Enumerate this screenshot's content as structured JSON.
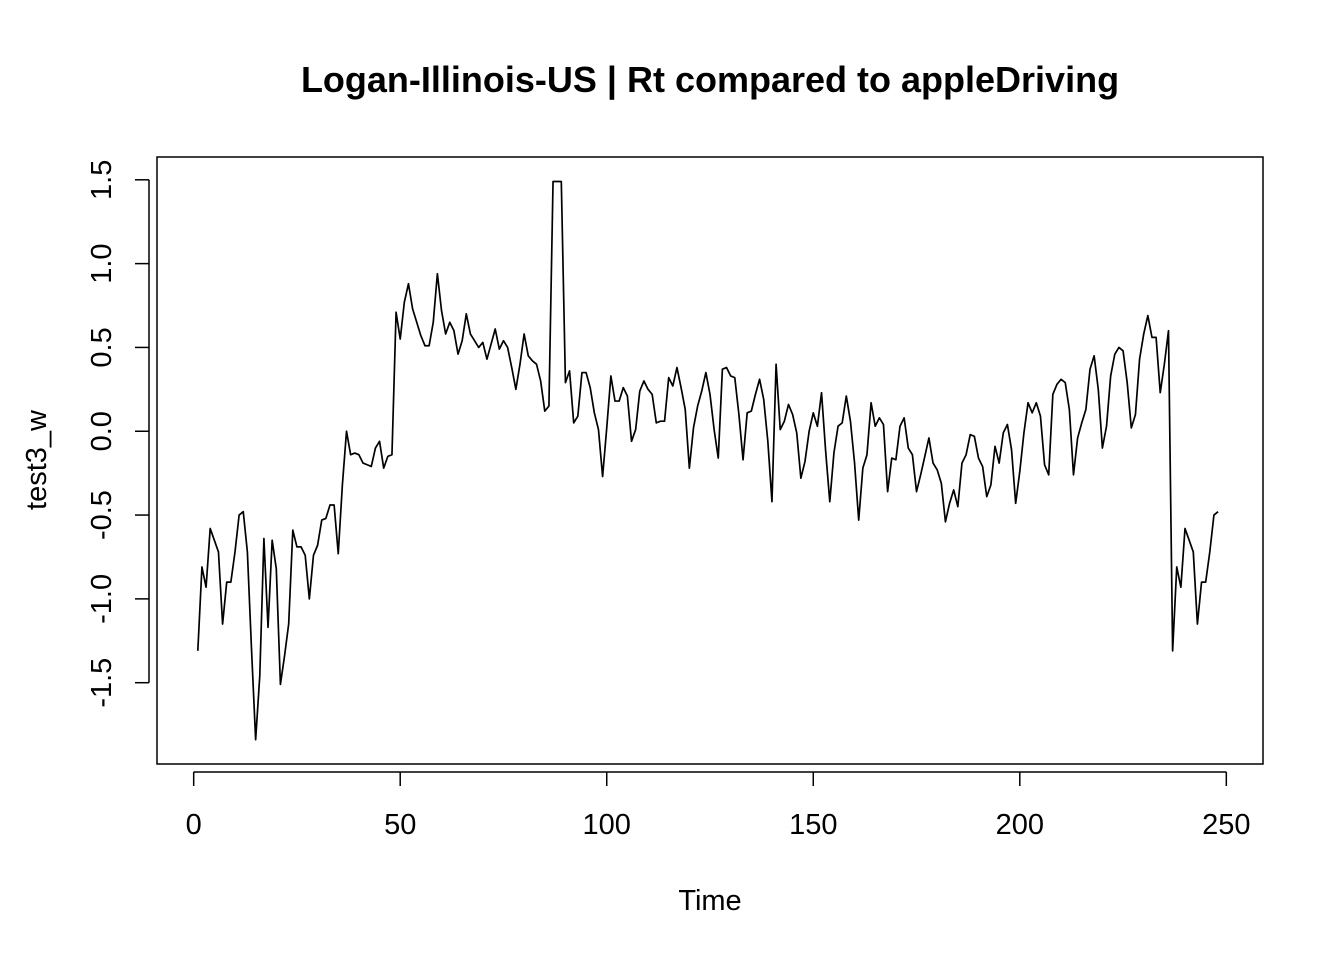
{
  "chart_data": {
    "type": "line",
    "title": "Logan-Illinois-US | Rt compared to appleDriving",
    "xlabel": "Time",
    "ylabel": "test3_w",
    "xlim": [
      -8.88,
      258.88
    ],
    "ylim": [
      -1.985,
      1.636
    ],
    "x_ticks": [
      0,
      50,
      100,
      150,
      200,
      250
    ],
    "x_tick_labels": [
      "0",
      "50",
      "100",
      "150",
      "200",
      "250"
    ],
    "y_ticks": [
      -1.5,
      -1.0,
      -0.5,
      0.0,
      0.5,
      1.0,
      1.5
    ],
    "y_tick_labels": [
      "-1.5",
      "-1.0",
      "-0.5",
      "0.0",
      "0.5",
      "1.0",
      "1.5"
    ],
    "grid": false,
    "series": [
      {
        "color": "#000000",
        "points": [
          [
            1,
            -1.31
          ],
          [
            2,
            -0.81
          ],
          [
            3,
            -0.93
          ],
          [
            4,
            -0.58
          ],
          [
            5,
            -0.65
          ],
          [
            6,
            -0.72
          ],
          [
            7,
            -1.15
          ],
          [
            8,
            -0.9
          ],
          [
            9,
            -0.9
          ],
          [
            10,
            -0.72
          ],
          [
            11,
            -0.5
          ],
          [
            12,
            -0.48
          ],
          [
            13,
            -0.72
          ],
          [
            14,
            -1.3
          ],
          [
            15,
            -1.84
          ],
          [
            16,
            -1.46
          ],
          [
            17,
            -0.64
          ],
          [
            18,
            -1.17
          ],
          [
            19,
            -0.65
          ],
          [
            20,
            -0.82
          ],
          [
            21,
            -1.51
          ],
          [
            22,
            -1.34
          ],
          [
            23,
            -1.15
          ],
          [
            24,
            -0.59
          ],
          [
            25,
            -0.69
          ],
          [
            26,
            -0.69
          ],
          [
            27,
            -0.74
          ],
          [
            28,
            -1.0
          ],
          [
            29,
            -0.74
          ],
          [
            30,
            -0.68
          ],
          [
            31,
            -0.53
          ],
          [
            32,
            -0.52
          ],
          [
            33,
            -0.44
          ],
          [
            34,
            -0.44
          ],
          [
            35,
            -0.73
          ],
          [
            36,
            -0.32
          ],
          [
            37,
            0.0
          ],
          [
            38,
            -0.14
          ],
          [
            39,
            -0.13
          ],
          [
            40,
            -0.14
          ],
          [
            41,
            -0.19
          ],
          [
            42,
            -0.2
          ],
          [
            43,
            -0.21
          ],
          [
            44,
            -0.1
          ],
          [
            45,
            -0.06
          ],
          [
            46,
            -0.22
          ],
          [
            47,
            -0.15
          ],
          [
            48,
            -0.14
          ],
          [
            49,
            0.71
          ],
          [
            50,
            0.55
          ],
          [
            51,
            0.77
          ],
          [
            52,
            0.88
          ],
          [
            53,
            0.73
          ],
          [
            54,
            0.65
          ],
          [
            55,
            0.57
          ],
          [
            56,
            0.51
          ],
          [
            57,
            0.51
          ],
          [
            58,
            0.65
          ],
          [
            59,
            0.94
          ],
          [
            60,
            0.72
          ],
          [
            61,
            0.58
          ],
          [
            62,
            0.65
          ],
          [
            63,
            0.6
          ],
          [
            64,
            0.46
          ],
          [
            65,
            0.54
          ],
          [
            66,
            0.7
          ],
          [
            67,
            0.58
          ],
          [
            68,
            0.54
          ],
          [
            69,
            0.5
          ],
          [
            70,
            0.53
          ],
          [
            71,
            0.43
          ],
          [
            72,
            0.52
          ],
          [
            73,
            0.61
          ],
          [
            74,
            0.49
          ],
          [
            75,
            0.54
          ],
          [
            76,
            0.5
          ],
          [
            77,
            0.38
          ],
          [
            78,
            0.25
          ],
          [
            79,
            0.4
          ],
          [
            80,
            0.58
          ],
          [
            81,
            0.45
          ],
          [
            82,
            0.42
          ],
          [
            83,
            0.4
          ],
          [
            84,
            0.3
          ],
          [
            85,
            0.12
          ],
          [
            86,
            0.15
          ],
          [
            87,
            1.49
          ],
          [
            88,
            1.49
          ],
          [
            89,
            1.49
          ],
          [
            90,
            0.29
          ],
          [
            91,
            0.36
          ],
          [
            92,
            0.05
          ],
          [
            93,
            0.09
          ],
          [
            94,
            0.35
          ],
          [
            95,
            0.35
          ],
          [
            96,
            0.26
          ],
          [
            97,
            0.11
          ],
          [
            98,
            0.01
          ],
          [
            99,
            -0.27
          ],
          [
            100,
            0.02
          ],
          [
            101,
            0.33
          ],
          [
            102,
            0.18
          ],
          [
            103,
            0.18
          ],
          [
            104,
            0.26
          ],
          [
            105,
            0.21
          ],
          [
            106,
            -0.06
          ],
          [
            107,
            0.01
          ],
          [
            108,
            0.24
          ],
          [
            109,
            0.3
          ],
          [
            110,
            0.25
          ],
          [
            111,
            0.22
          ],
          [
            112,
            0.05
          ],
          [
            113,
            0.06
          ],
          [
            114,
            0.06
          ],
          [
            115,
            0.32
          ],
          [
            116,
            0.27
          ],
          [
            117,
            0.38
          ],
          [
            118,
            0.26
          ],
          [
            119,
            0.13
          ],
          [
            120,
            -0.22
          ],
          [
            121,
            0.02
          ],
          [
            122,
            0.15
          ],
          [
            123,
            0.24
          ],
          [
            124,
            0.35
          ],
          [
            125,
            0.22
          ],
          [
            126,
            0.01
          ],
          [
            127,
            -0.16
          ],
          [
            128,
            0.37
          ],
          [
            129,
            0.38
          ],
          [
            130,
            0.33
          ],
          [
            131,
            0.32
          ],
          [
            132,
            0.1
          ],
          [
            133,
            -0.17
          ],
          [
            134,
            0.11
          ],
          [
            135,
            0.12
          ],
          [
            136,
            0.22
          ],
          [
            137,
            0.31
          ],
          [
            138,
            0.19
          ],
          [
            139,
            -0.06
          ],
          [
            140,
            -0.42
          ],
          [
            141,
            0.4
          ],
          [
            142,
            0.01
          ],
          [
            143,
            0.06
          ],
          [
            144,
            0.16
          ],
          [
            145,
            0.1
          ],
          [
            146,
            -0.01
          ],
          [
            147,
            -0.28
          ],
          [
            148,
            -0.18
          ],
          [
            149,
            0.0
          ],
          [
            150,
            0.11
          ],
          [
            151,
            0.03
          ],
          [
            152,
            0.23
          ],
          [
            153,
            -0.12
          ],
          [
            154,
            -0.42
          ],
          [
            155,
            -0.13
          ],
          [
            156,
            0.03
          ],
          [
            157,
            0.05
          ],
          [
            158,
            0.21
          ],
          [
            159,
            0.06
          ],
          [
            160,
            -0.19
          ],
          [
            161,
            -0.53
          ],
          [
            162,
            -0.22
          ],
          [
            163,
            -0.14
          ],
          [
            164,
            0.17
          ],
          [
            165,
            0.03
          ],
          [
            166,
            0.08
          ],
          [
            167,
            0.04
          ],
          [
            168,
            -0.36
          ],
          [
            169,
            -0.16
          ],
          [
            170,
            -0.17
          ],
          [
            171,
            0.03
          ],
          [
            172,
            0.08
          ],
          [
            173,
            -0.1
          ],
          [
            174,
            -0.14
          ],
          [
            175,
            -0.36
          ],
          [
            176,
            -0.26
          ],
          [
            177,
            -0.15
          ],
          [
            178,
            -0.04
          ],
          [
            179,
            -0.19
          ],
          [
            180,
            -0.23
          ],
          [
            181,
            -0.31
          ],
          [
            182,
            -0.54
          ],
          [
            183,
            -0.43
          ],
          [
            184,
            -0.35
          ],
          [
            185,
            -0.45
          ],
          [
            186,
            -0.19
          ],
          [
            187,
            -0.14
          ],
          [
            188,
            -0.02
          ],
          [
            189,
            -0.03
          ],
          [
            190,
            -0.16
          ],
          [
            191,
            -0.21
          ],
          [
            192,
            -0.39
          ],
          [
            193,
            -0.32
          ],
          [
            194,
            -0.09
          ],
          [
            195,
            -0.19
          ],
          [
            196,
            -0.01
          ],
          [
            197,
            0.04
          ],
          [
            198,
            -0.11
          ],
          [
            199,
            -0.43
          ],
          [
            200,
            -0.24
          ],
          [
            201,
            -0.01
          ],
          [
            202,
            0.17
          ],
          [
            203,
            0.11
          ],
          [
            204,
            0.17
          ],
          [
            205,
            0.09
          ],
          [
            206,
            -0.2
          ],
          [
            207,
            -0.26
          ],
          [
            208,
            0.22
          ],
          [
            209,
            0.28
          ],
          [
            210,
            0.31
          ],
          [
            211,
            0.29
          ],
          [
            212,
            0.13
          ],
          [
            213,
            -0.26
          ],
          [
            214,
            -0.04
          ],
          [
            215,
            0.05
          ],
          [
            216,
            0.13
          ],
          [
            217,
            0.37
          ],
          [
            218,
            0.45
          ],
          [
            219,
            0.25
          ],
          [
            220,
            -0.1
          ],
          [
            221,
            0.03
          ],
          [
            222,
            0.33
          ],
          [
            223,
            0.46
          ],
          [
            224,
            0.5
          ],
          [
            225,
            0.48
          ],
          [
            226,
            0.29
          ],
          [
            227,
            0.02
          ],
          [
            228,
            0.1
          ],
          [
            229,
            0.43
          ],
          [
            230,
            0.58
          ],
          [
            231,
            0.69
          ],
          [
            232,
            0.56
          ],
          [
            233,
            0.56
          ],
          [
            234,
            0.23
          ],
          [
            235,
            0.4
          ],
          [
            236,
            0.6
          ],
          [
            237,
            -1.31
          ],
          [
            238,
            -0.81
          ],
          [
            239,
            -0.93
          ],
          [
            240,
            -0.58
          ],
          [
            241,
            -0.65
          ],
          [
            242,
            -0.72
          ],
          [
            243,
            -1.15
          ],
          [
            244,
            -0.9
          ],
          [
            245,
            -0.9
          ],
          [
            246,
            -0.72
          ],
          [
            247,
            -0.5
          ],
          [
            248,
            -0.48
          ]
        ]
      }
    ]
  }
}
